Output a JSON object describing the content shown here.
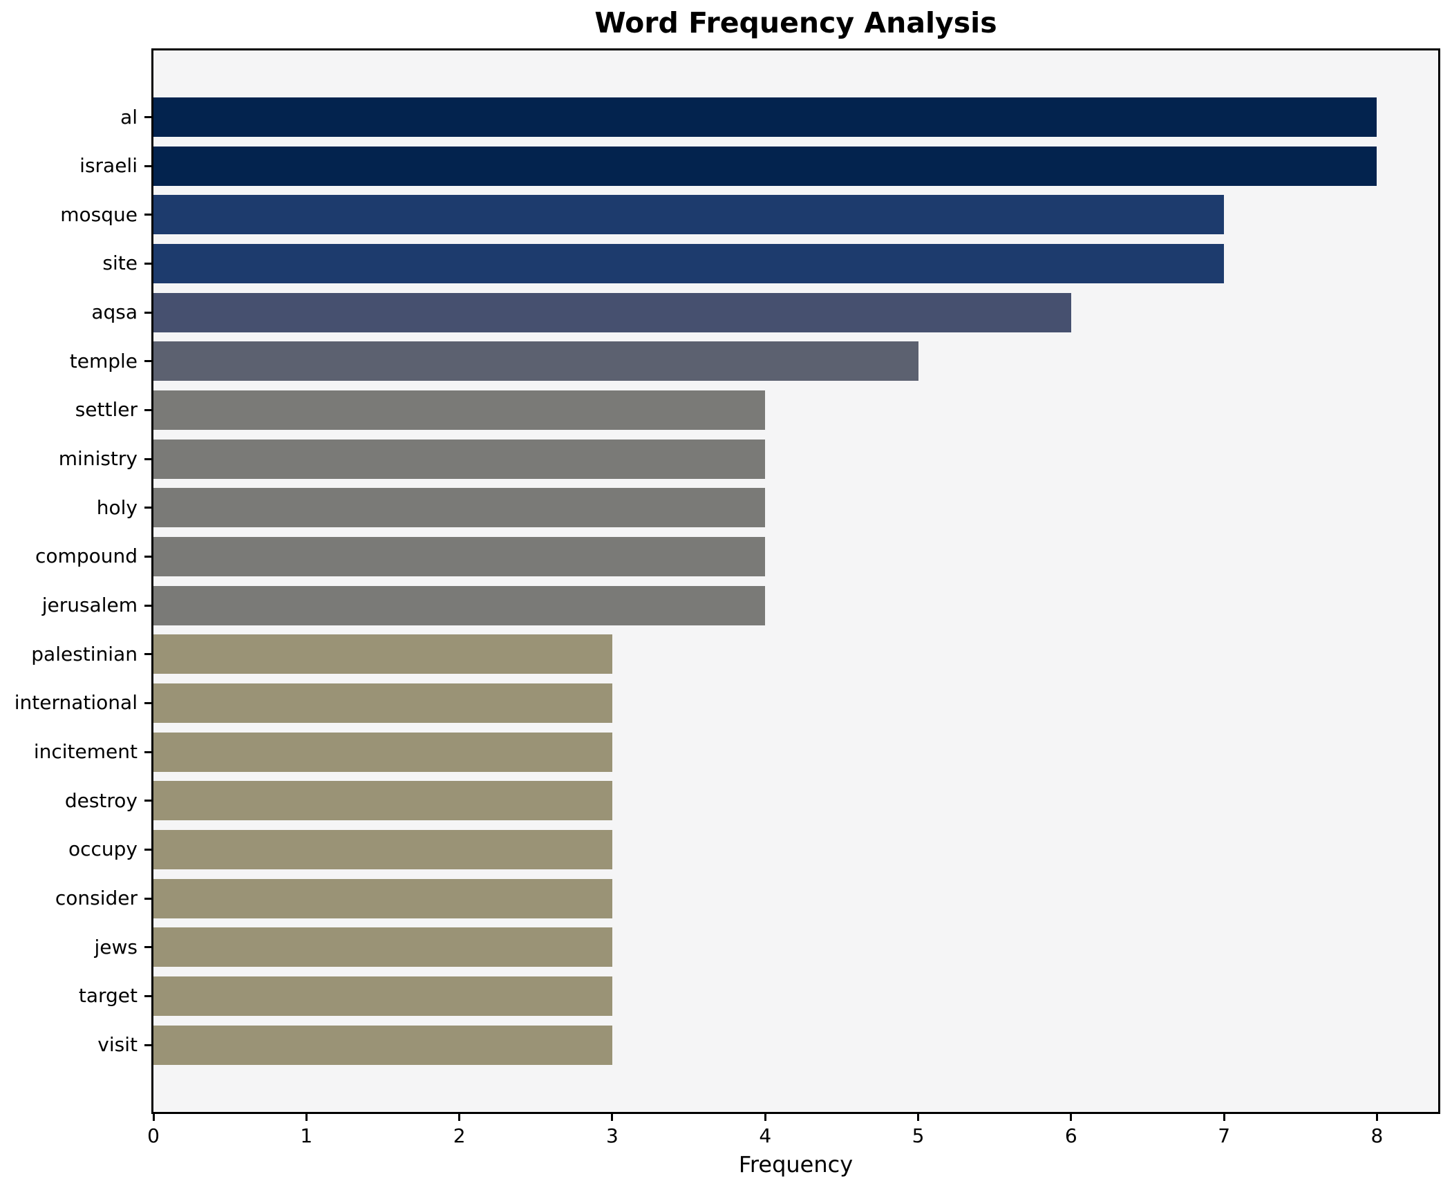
{
  "chart_data": {
    "type": "bar",
    "orientation": "horizontal",
    "title": "Word Frequency Analysis",
    "xlabel": "Frequency",
    "ylabel": "",
    "categories": [
      "al",
      "israeli",
      "mosque",
      "site",
      "aqsa",
      "temple",
      "settler",
      "ministry",
      "holy",
      "compound",
      "jerusalem",
      "palestinian",
      "international",
      "incitement",
      "destroy",
      "occupy",
      "consider",
      "jews",
      "target",
      "visit"
    ],
    "values": [
      8,
      8,
      7,
      7,
      6,
      5,
      4,
      4,
      4,
      4,
      4,
      3,
      3,
      3,
      3,
      3,
      3,
      3,
      3,
      3
    ],
    "bar_colors": [
      "#03234e",
      "#03234e",
      "#1d3b6d",
      "#1d3b6d",
      "#46506f",
      "#5c6170",
      "#7a7a77",
      "#7a7a77",
      "#7a7a77",
      "#7a7a77",
      "#7a7a77",
      "#9a9376",
      "#9a9376",
      "#9a9376",
      "#9a9376",
      "#9a9376",
      "#9a9376",
      "#9a9376",
      "#9a9376",
      "#9a9376"
    ],
    "xlim": [
      0,
      8.4
    ],
    "xticks": [
      0,
      1,
      2,
      3,
      4,
      5,
      6,
      7,
      8
    ],
    "grid": false,
    "legend": null,
    "colormap": "cividis",
    "figure_background": "#ffffff",
    "plot_background": "#f5f5f6",
    "spine_color": "#000000",
    "text_color": "#000000"
  }
}
